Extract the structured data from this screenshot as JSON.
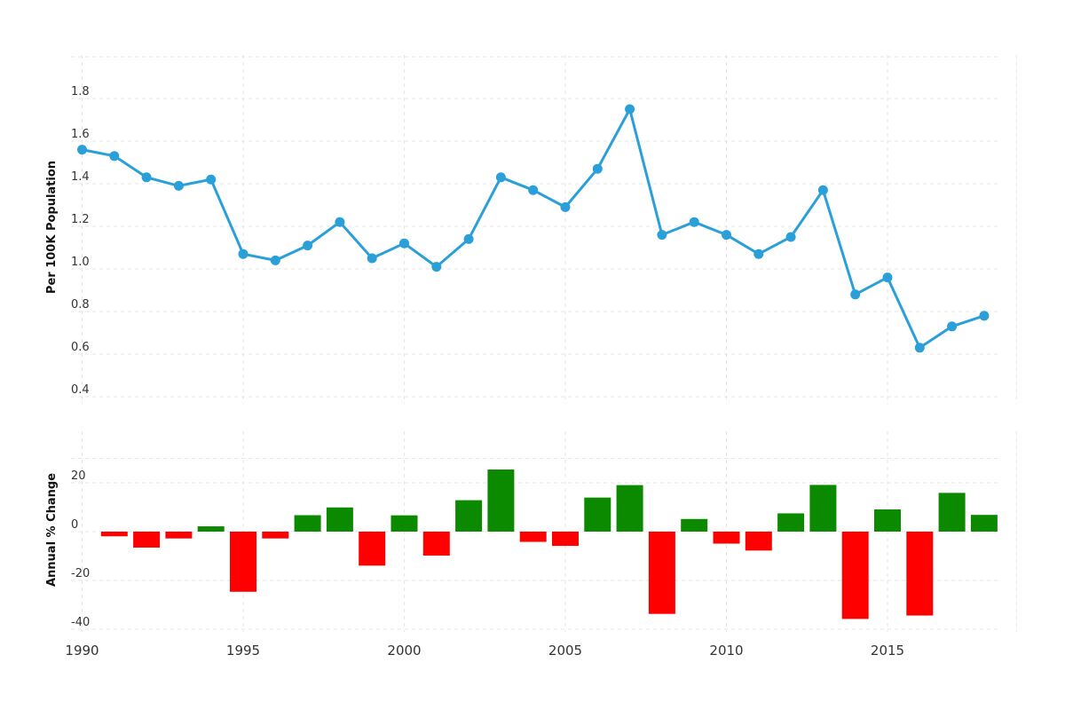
{
  "chart_data": [
    {
      "type": "line",
      "ylabel": "Per 100K Population",
      "ylim": [
        0.4,
        1.9
      ],
      "yticks": [
        "1.8",
        "1.6",
        "1.4",
        "1.2",
        "1.0",
        "0.8",
        "0.6",
        "0.4"
      ],
      "ytick_values": [
        1.8,
        1.6,
        1.4,
        1.2,
        1.0,
        0.8,
        0.6,
        0.4
      ],
      "grid": true,
      "color": "#2a9fd8",
      "x": [
        1990,
        1991,
        1992,
        1993,
        1994,
        1995,
        1996,
        1997,
        1998,
        1999,
        2000,
        2001,
        2002,
        2003,
        2004,
        2005,
        2006,
        2007,
        2008,
        2009,
        2010,
        2011,
        2012,
        2013,
        2014,
        2015,
        2016,
        2017,
        2018
      ],
      "values": [
        1.56,
        1.53,
        1.43,
        1.39,
        1.42,
        1.07,
        1.04,
        1.11,
        1.22,
        1.05,
        1.12,
        1.01,
        1.14,
        1.43,
        1.37,
        1.29,
        1.47,
        1.75,
        1.16,
        1.22,
        1.16,
        1.07,
        1.15,
        1.37,
        0.88,
        0.96,
        0.63,
        0.73,
        0.78
      ]
    },
    {
      "type": "bar",
      "ylabel": "Annual % Change",
      "ylim": [
        -40,
        30
      ],
      "yticks": [
        "20",
        "0",
        "-20",
        "-40"
      ],
      "ytick_values": [
        20,
        0,
        -20,
        -40
      ],
      "grid": true,
      "positive_color": "#0b8a00",
      "negative_color": "#ff0000",
      "x": [
        1991,
        1992,
        1993,
        1994,
        1995,
        1996,
        1997,
        1998,
        1999,
        2000,
        2001,
        2002,
        2003,
        2004,
        2005,
        2006,
        2007,
        2008,
        2009,
        2010,
        2011,
        2012,
        2013,
        2014,
        2015,
        2016,
        2017,
        2018
      ],
      "values": [
        -1.92,
        -6.54,
        -2.8,
        2.16,
        -24.65,
        -2.8,
        6.73,
        9.91,
        -13.93,
        6.67,
        -9.82,
        12.87,
        25.44,
        -4.2,
        -5.84,
        13.95,
        19.05,
        -33.71,
        5.17,
        -4.92,
        -7.76,
        7.48,
        19.13,
        -35.77,
        9.09,
        -34.38,
        15.87,
        6.85
      ]
    }
  ],
  "xaxis": {
    "ticks": [
      "1990",
      "1995",
      "2000",
      "2005",
      "2010",
      "2015"
    ],
    "tick_values": [
      1990,
      1995,
      2000,
      2005,
      2010,
      2015
    ],
    "range": [
      1990,
      2019.2
    ]
  }
}
